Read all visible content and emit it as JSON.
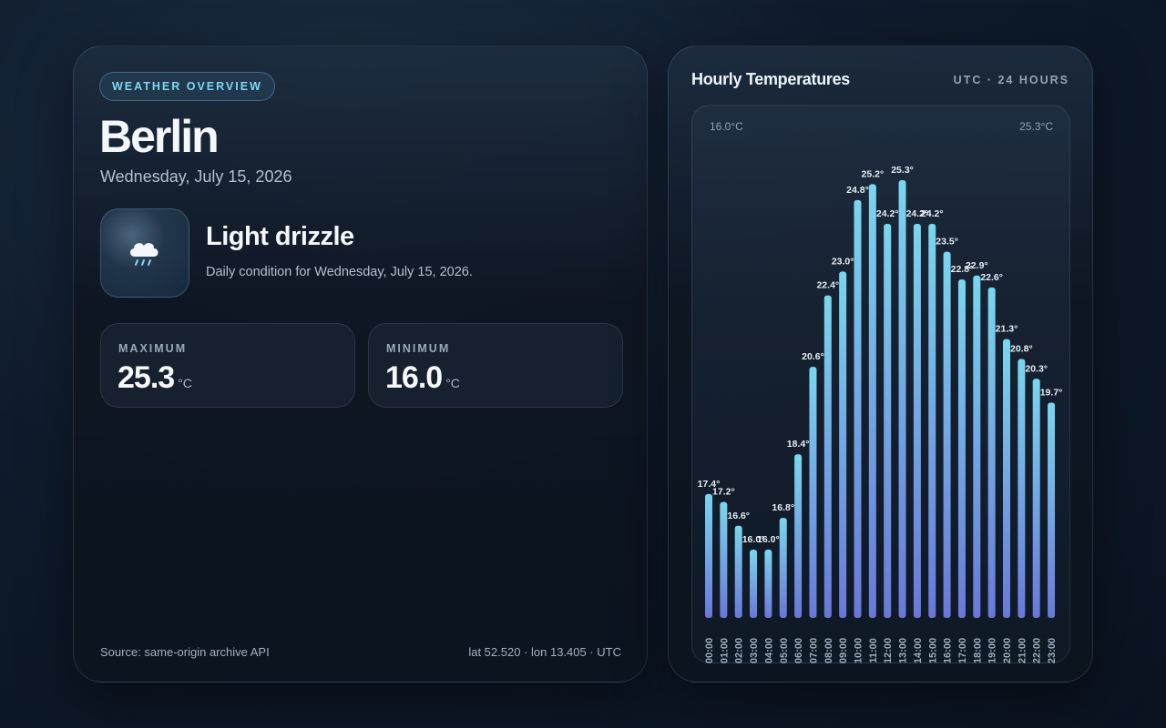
{
  "overview": {
    "badge": "WEATHER OVERVIEW",
    "city": "Berlin",
    "date": "Wednesday, July 15, 2026",
    "condition": {
      "icon": "cloud-drizzle-icon",
      "title": "Light drizzle",
      "subtitle": "Daily condition for Wednesday, July 15, 2026."
    },
    "stats": {
      "max": {
        "label": "MAXIMUM",
        "value": "25.3",
        "unit": "°C"
      },
      "min": {
        "label": "MINIMUM",
        "value": "16.0",
        "unit": "°C"
      }
    },
    "footer": {
      "source": "Source: same-origin archive API",
      "location": "lat 52.520 · lon 13.405 · UTC"
    }
  },
  "hourly": {
    "title": "Hourly Temperatures",
    "meta": "UTC · 24 HOURS",
    "range_low": "16.0°C",
    "range_high": "25.3°C"
  },
  "colors": {
    "accent": "#7fd6ef",
    "bar_top": "#7ad6ee",
    "bar_bottom": "#6a78d8"
  },
  "chart_data": {
    "type": "bar",
    "categories": [
      "00:00",
      "01:00",
      "02:00",
      "03:00",
      "04:00",
      "05:00",
      "06:00",
      "07:00",
      "08:00",
      "09:00",
      "10:00",
      "11:00",
      "12:00",
      "13:00",
      "14:00",
      "15:00",
      "16:00",
      "17:00",
      "18:00",
      "19:00",
      "20:00",
      "21:00",
      "22:00",
      "23:00"
    ],
    "values": [
      17.4,
      17.2,
      16.6,
      16.0,
      16.0,
      16.8,
      18.4,
      20.6,
      22.4,
      23.0,
      24.8,
      25.2,
      24.2,
      25.3,
      24.2,
      24.2,
      23.5,
      22.8,
      22.9,
      22.6,
      21.3,
      20.8,
      20.3,
      19.7
    ],
    "value_suffix": "°",
    "ylim": [
      16.0,
      25.3
    ],
    "grid": false
  }
}
